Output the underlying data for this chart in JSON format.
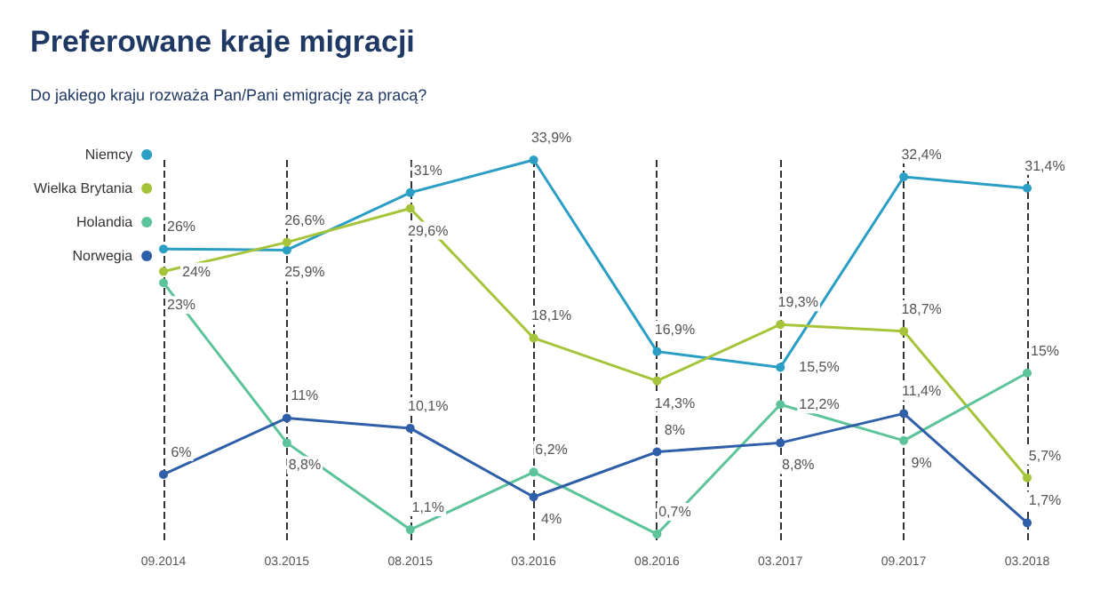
{
  "chart_data": {
    "type": "line",
    "title": "Preferowane kraje migracji",
    "subtitle": "Do jakiego kraju rozważa Pan/Pani emigrację za pracą?",
    "categories": [
      "09.2014",
      "03.2015",
      "08.2015",
      "03.2016",
      "08.2016",
      "03.2017",
      "09.2017",
      "03.2018"
    ],
    "series": [
      {
        "name": "Niemcy",
        "color": "#2a9ec4",
        "values": [
          26,
          25.9,
          31,
          33.9,
          16.9,
          15.5,
          32.4,
          31.4
        ],
        "value_labels": [
          "26%",
          "25,9%",
          "31%",
          "33,9%",
          "16,9%",
          "15,5%",
          "32,4%",
          "31,4%"
        ]
      },
      {
        "name": "Wielka Brytania",
        "color": "#a5c43a",
        "values": [
          24,
          26.6,
          29.6,
          18.1,
          14.3,
          19.3,
          18.7,
          5.7
        ],
        "value_labels": [
          "24%",
          "26,6%",
          "29,6%",
          "18,1%",
          "14,3%",
          "19,3%",
          "18,7%",
          "5,7%"
        ]
      },
      {
        "name": "Holandia",
        "color": "#5cc39a",
        "values": [
          23,
          8.8,
          1.1,
          6.2,
          0.7,
          12.2,
          9,
          15
        ],
        "value_labels": [
          "23%",
          "8,8%",
          "1,1%",
          "6,2%",
          "0,7%",
          "12,2%",
          "9%",
          "15%"
        ]
      },
      {
        "name": "Norwegia",
        "color": "#2f5fa8",
        "values": [
          6,
          11,
          10.1,
          4,
          8,
          8.8,
          11.4,
          1.7
        ],
        "value_labels": [
          "6%",
          "11%",
          "10,1%",
          "4%",
          "8%",
          "8,8%",
          "11,4%",
          "1,7%"
        ]
      }
    ],
    "legend": "top left",
    "grid": "x",
    "tick_labels": "x",
    "marker": "circle",
    "line_style": "solid"
  }
}
